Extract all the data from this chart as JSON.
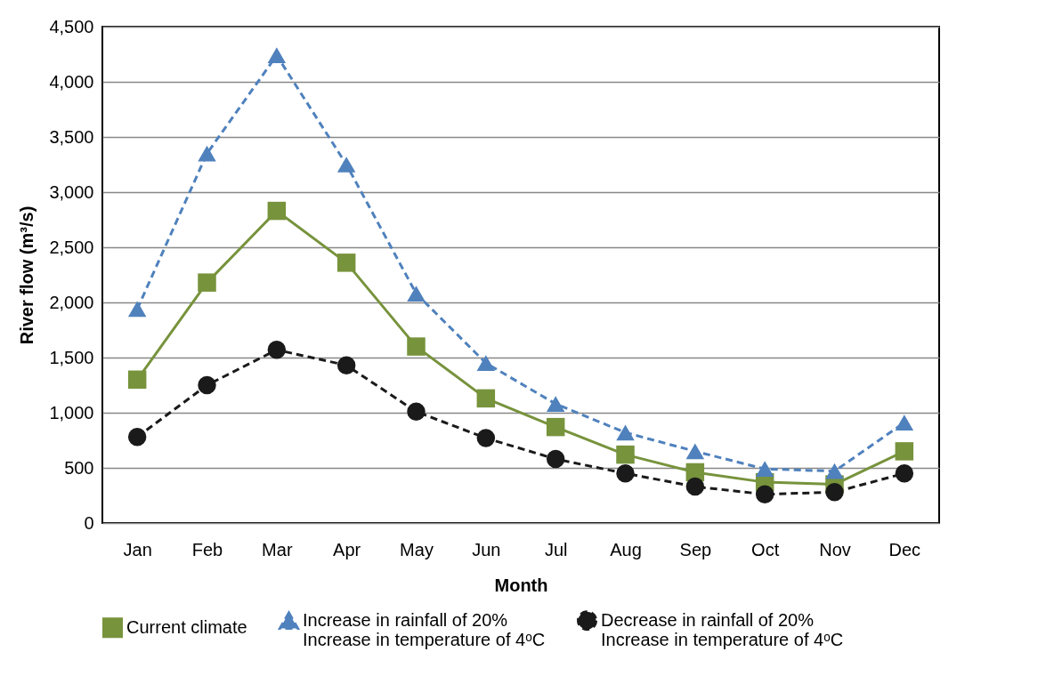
{
  "chart_data": {
    "type": "line",
    "xlabel": "Month",
    "ylabel": "River flow (m³/s)",
    "categories": [
      "Jan",
      "Feb",
      "Mar",
      "Apr",
      "May",
      "Jun",
      "Jul",
      "Aug",
      "Sep",
      "Oct",
      "Nov",
      "Dec"
    ],
    "series": [
      {
        "name": "Current climate",
        "color": "#77933c",
        "marker": "square",
        "line_style": "solid",
        "values": [
          1300,
          2180,
          2830,
          2360,
          1600,
          1130,
          870,
          620,
          460,
          370,
          350,
          650
        ]
      },
      {
        "name": "Increase in rainfall of 20%\nIncrease in temperature of 4ᵒC",
        "color": "#4f81bd",
        "marker": "triangle",
        "line_style": "dashed",
        "values": [
          1940,
          3350,
          4240,
          3250,
          2080,
          1450,
          1080,
          820,
          650,
          490,
          470,
          910
        ]
      },
      {
        "name": "Decrease in rainfall of 20%\nIncrease in temperature of 4ᵒC",
        "color": "#1a1a1a",
        "marker": "circle",
        "line_style": "dashed",
        "values": [
          780,
          1250,
          1570,
          1430,
          1010,
          770,
          580,
          450,
          330,
          260,
          280,
          450
        ]
      }
    ],
    "ylim": [
      0,
      4500
    ],
    "yticks": [
      0,
      500,
      {
        "value": 1000,
        "label": "1,000"
      },
      {
        "value": 1500,
        "label": "1,500"
      },
      {
        "value": 2000,
        "label": "2,000"
      },
      {
        "value": 2500,
        "label": "2,500"
      },
      {
        "value": 3000,
        "label": "3,000"
      },
      {
        "value": 3500,
        "label": "3,500"
      },
      {
        "value": 4000,
        "label": "4,000"
      },
      {
        "value": 4500,
        "label": "4,500"
      }
    ],
    "grid": "y",
    "legend": "bottom"
  }
}
